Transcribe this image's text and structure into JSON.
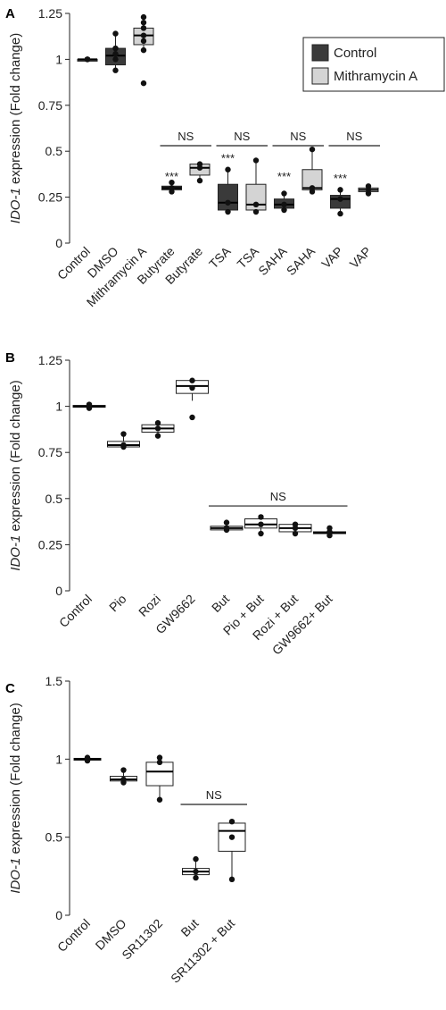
{
  "chart_data": [
    {
      "panel": "A",
      "type": "box",
      "ylabel_italic": "IDO-1",
      "ylabel_rest": " expression (Fold change)",
      "ylim": [
        0,
        1.25
      ],
      "yticks": [
        0,
        0.25,
        0.5,
        0.75,
        1,
        1.25
      ],
      "ytick_labels": [
        "0",
        "0.25",
        "0.5",
        "0.75",
        "1",
        "1.25"
      ],
      "categories": [
        "Control",
        "DMSO",
        "Mithramycin A",
        "Butyrate",
        "Butyrate",
        "TSA",
        "TSA",
        "SAHA",
        "SAHA",
        "VAP",
        "VAP"
      ],
      "legend": {
        "position": "top-right",
        "items": [
          {
            "label": "Control",
            "color": "#3a3a3a"
          },
          {
            "label": "Mithramycin A",
            "color": "#d4d4d4"
          }
        ]
      },
      "boxes": [
        {
          "group": "Control",
          "fill": "#3a3a3a",
          "q1": 1.0,
          "median": 1.0,
          "q3": 1.0,
          "wlo": 1.0,
          "whi": 1.0,
          "points": [
            1.0,
            1.0,
            1.0
          ]
        },
        {
          "group": "Control",
          "fill": "#3a3a3a",
          "q1": 0.97,
          "median": 1.02,
          "q3": 1.06,
          "wlo": 0.94,
          "whi": 1.14,
          "points": [
            0.94,
            1.0,
            1.03,
            1.06,
            1.14
          ]
        },
        {
          "group": "Mithramycin A",
          "fill": "#d4d4d4",
          "q1": 1.08,
          "median": 1.13,
          "q3": 1.17,
          "wlo": 1.05,
          "whi": 1.23,
          "points": [
            0.87,
            1.05,
            1.1,
            1.13,
            1.17,
            1.2,
            1.23
          ]
        },
        {
          "group": "Control",
          "fill": "#3a3a3a",
          "q1": 0.29,
          "median": 0.3,
          "q3": 0.31,
          "wlo": 0.28,
          "whi": 0.33,
          "points": [
            0.28,
            0.3,
            0.33
          ]
        },
        {
          "group": "Mithramycin A",
          "fill": "#d4d4d4",
          "q1": 0.37,
          "median": 0.41,
          "q3": 0.43,
          "wlo": 0.34,
          "whi": 0.43,
          "points": [
            0.34,
            0.41,
            0.43
          ]
        },
        {
          "group": "Control",
          "fill": "#3a3a3a",
          "q1": 0.18,
          "median": 0.22,
          "q3": 0.32,
          "wlo": 0.17,
          "whi": 0.4,
          "points": [
            0.17,
            0.22,
            0.4
          ]
        },
        {
          "group": "Mithramycin A",
          "fill": "#d4d4d4",
          "q1": 0.18,
          "median": 0.21,
          "q3": 0.32,
          "wlo": 0.17,
          "whi": 0.45,
          "points": [
            0.17,
            0.21,
            0.45
          ]
        },
        {
          "group": "Control",
          "fill": "#3a3a3a",
          "q1": 0.19,
          "median": 0.21,
          "q3": 0.24,
          "wlo": 0.18,
          "whi": 0.27,
          "points": [
            0.18,
            0.21,
            0.27
          ]
        },
        {
          "group": "Mithramycin A",
          "fill": "#d4d4d4",
          "q1": 0.29,
          "median": 0.3,
          "q3": 0.4,
          "wlo": 0.28,
          "whi": 0.51,
          "points": [
            0.28,
            0.3,
            0.51
          ]
        },
        {
          "group": "Control",
          "fill": "#3a3a3a",
          "q1": 0.19,
          "median": 0.24,
          "q3": 0.26,
          "wlo": 0.16,
          "whi": 0.29,
          "points": [
            0.16,
            0.24,
            0.29
          ]
        },
        {
          "group": "Mithramycin A",
          "fill": "#d4d4d4",
          "q1": 0.28,
          "median": 0.29,
          "q3": 0.3,
          "wlo": 0.27,
          "whi": 0.31,
          "points": [
            0.27,
            0.29,
            0.31
          ]
        }
      ],
      "annotations": [
        {
          "text": "***",
          "box": 3,
          "y": 0.34
        },
        {
          "text": "***",
          "box": 5,
          "y": 0.44
        },
        {
          "text": "***",
          "box": 7,
          "y": 0.34
        },
        {
          "text": "***",
          "box": 9,
          "y": 0.33
        }
      ],
      "brackets": [
        {
          "text": "NS",
          "from": 3,
          "to": 4,
          "y": 0.53
        },
        {
          "text": "NS",
          "from": 5,
          "to": 6,
          "y": 0.53
        },
        {
          "text": "NS",
          "from": 7,
          "to": 8,
          "y": 0.53
        },
        {
          "text": "NS",
          "from": 9,
          "to": 10,
          "y": 0.53
        }
      ]
    },
    {
      "panel": "B",
      "type": "box",
      "ylabel_italic": "IDO-1",
      "ylabel_rest": " expression (Fold change)",
      "ylim": [
        0,
        1.25
      ],
      "yticks": [
        0,
        0.25,
        0.5,
        0.75,
        1,
        1.25
      ],
      "ytick_labels": [
        "0",
        "0.25",
        "0.5",
        "0.75",
        "1",
        "1.25"
      ],
      "categories": [
        "Control",
        "Pio",
        "Rozi",
        "GW9662",
        "But",
        "Pio + But",
        "Rozi + But",
        "GW9662+ But"
      ],
      "boxes": [
        {
          "fill": "#ffffff",
          "q1": 0.995,
          "median": 1.0,
          "q3": 1.005,
          "wlo": 0.99,
          "whi": 1.01,
          "points": [
            0.99,
            1.0,
            1.01
          ]
        },
        {
          "fill": "#ffffff",
          "q1": 0.78,
          "median": 0.79,
          "q3": 0.81,
          "wlo": 0.78,
          "whi": 0.85,
          "points": [
            0.78,
            0.79,
            0.85
          ]
        },
        {
          "fill": "#ffffff",
          "q1": 0.86,
          "median": 0.88,
          "q3": 0.9,
          "wlo": 0.84,
          "whi": 0.91,
          "points": [
            0.84,
            0.88,
            0.91
          ]
        },
        {
          "fill": "#ffffff",
          "q1": 1.07,
          "median": 1.11,
          "q3": 1.14,
          "wlo": 1.03,
          "whi": 1.15,
          "points": [
            0.94,
            1.1,
            1.14
          ]
        },
        {
          "fill": "#ffffff",
          "q1": 0.33,
          "median": 0.34,
          "q3": 0.35,
          "wlo": 0.33,
          "whi": 0.37,
          "points": [
            0.33,
            0.34,
            0.37
          ]
        },
        {
          "fill": "#ffffff",
          "q1": 0.34,
          "median": 0.36,
          "q3": 0.39,
          "wlo": 0.31,
          "whi": 0.4,
          "points": [
            0.31,
            0.36,
            0.4
          ]
        },
        {
          "fill": "#ffffff",
          "q1": 0.32,
          "median": 0.34,
          "q3": 0.36,
          "wlo": 0.31,
          "whi": 0.36,
          "points": [
            0.31,
            0.34,
            0.36
          ]
        },
        {
          "fill": "#ffffff",
          "q1": 0.31,
          "median": 0.315,
          "q3": 0.32,
          "wlo": 0.3,
          "whi": 0.34,
          "points": [
            0.3,
            0.32,
            0.34
          ]
        }
      ],
      "annotations": [],
      "brackets": [
        {
          "text": "NS",
          "from": 4,
          "to": 7,
          "y": 0.46
        }
      ]
    },
    {
      "panel": "C",
      "type": "box",
      "ylabel_italic": "IDO-1",
      "ylabel_rest": " expression (Fold change)",
      "ylim": [
        0,
        1.5
      ],
      "yticks": [
        0,
        0.5,
        1,
        1.5
      ],
      "ytick_labels": [
        "0",
        "0.5",
        "1",
        "1.5"
      ],
      "categories": [
        "Control",
        "DMSO",
        "SR11302",
        "But",
        "SR11302 + But"
      ],
      "boxes": [
        {
          "fill": "#ffffff",
          "q1": 0.995,
          "median": 1.0,
          "q3": 1.005,
          "wlo": 0.99,
          "whi": 1.01,
          "points": [
            0.99,
            1.0,
            1.01
          ]
        },
        {
          "fill": "#ffffff",
          "q1": 0.86,
          "median": 0.87,
          "q3": 0.89,
          "wlo": 0.85,
          "whi": 0.93,
          "points": [
            0.85,
            0.87,
            0.93
          ]
        },
        {
          "fill": "#ffffff",
          "q1": 0.83,
          "median": 0.92,
          "q3": 0.98,
          "wlo": 0.74,
          "whi": 1.02,
          "points": [
            0.74,
            0.98,
            1.01
          ]
        },
        {
          "fill": "#ffffff",
          "q1": 0.26,
          "median": 0.28,
          "q3": 0.3,
          "wlo": 0.24,
          "whi": 0.36,
          "points": [
            0.24,
            0.28,
            0.36
          ]
        },
        {
          "fill": "#ffffff",
          "q1": 0.41,
          "median": 0.54,
          "q3": 0.59,
          "wlo": 0.23,
          "whi": 0.6,
          "points": [
            0.23,
            0.5,
            0.6
          ]
        }
      ],
      "annotations": [],
      "brackets": [
        {
          "text": "NS",
          "from": 3,
          "to": 4,
          "y": 0.71
        }
      ]
    }
  ]
}
